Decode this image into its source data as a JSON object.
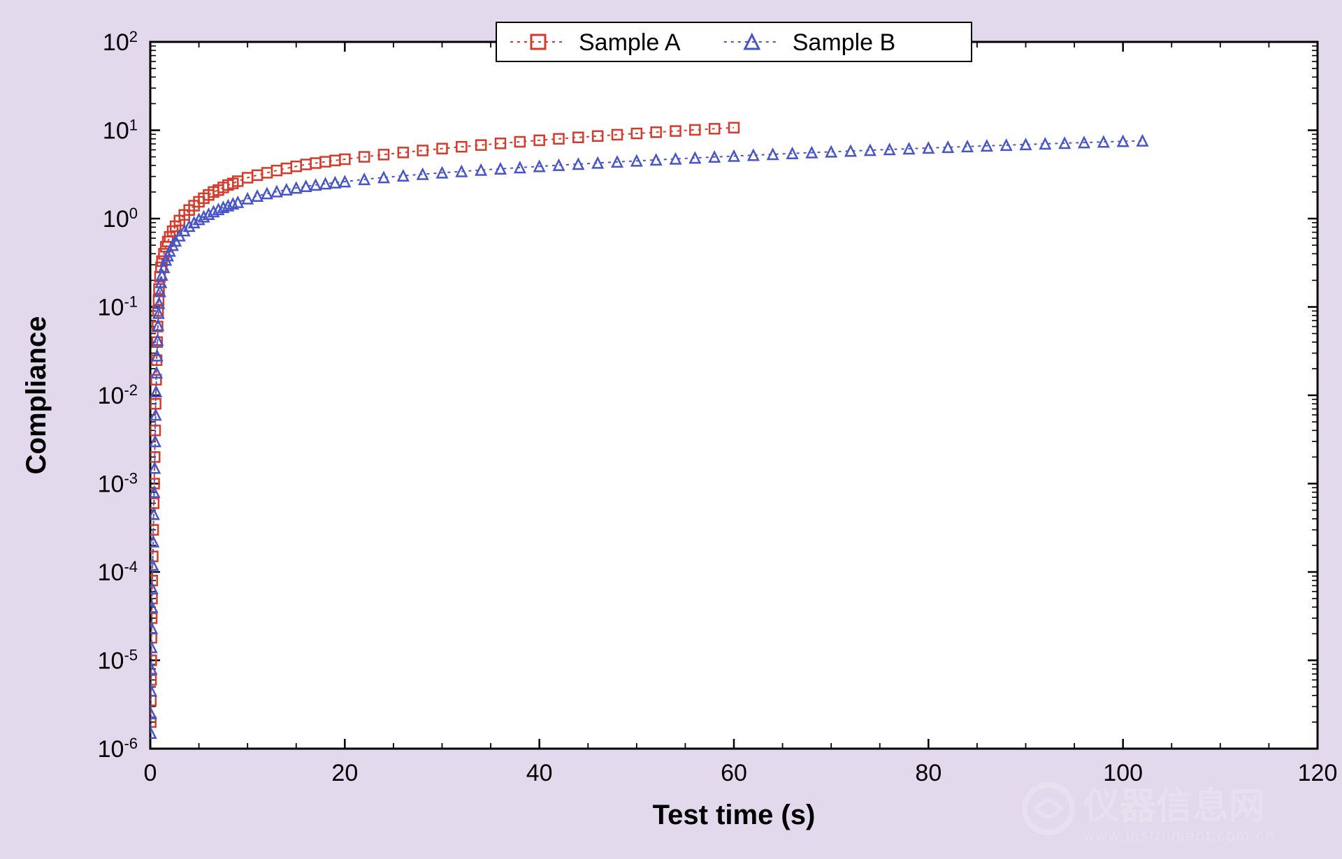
{
  "chart": {
    "type": "scatter-line",
    "background_color": "#e2d9ed",
    "plot_background_color": "#ffffff",
    "axis_color": "#000000",
    "grid": {
      "enabled": false
    },
    "tick_color": "#000000",
    "tick_fontsize": 34,
    "label_fontsize": 40,
    "label_fontweight": "bold",
    "xlabel": "Test time (s)",
    "ylabel": "Compliance",
    "x_axis": {
      "scale": "linear",
      "xlim": [
        0,
        120
      ],
      "ticks": [
        0,
        20,
        40,
        60,
        80,
        100,
        120
      ]
    },
    "y_axis": {
      "scale": "log",
      "ylim_exp": [
        -6,
        2
      ],
      "ticks_exp": [
        -6,
        -5,
        -4,
        -3,
        -2,
        -1,
        0,
        1,
        2
      ]
    },
    "legend": {
      "position": "top-center",
      "border_color": "#000000",
      "background_color": "#ffffff",
      "fontsize": 34,
      "items": [
        {
          "label": "Sample A",
          "marker": "square",
          "color": "#d63a2a",
          "line_color": "#d63a2a",
          "dash": "4,6"
        },
        {
          "label": "Sample B",
          "marker": "triangle",
          "color": "#4755c7",
          "line_color": "#4755c7",
          "dash": "4,6"
        }
      ]
    },
    "series": [
      {
        "name": "Sample A",
        "color": "#d63a2a",
        "marker": "square",
        "marker_size": 14,
        "marker_stroke_width": 2.5,
        "line_dash": "4,6",
        "line_width": 2,
        "data": [
          [
            0.05,
            2e-06
          ],
          [
            0.06,
            3.5e-06
          ],
          [
            0.08,
            6e-06
          ],
          [
            0.1,
            1e-05
          ],
          [
            0.12,
            1.8e-05
          ],
          [
            0.15,
            3e-05
          ],
          [
            0.18,
            5e-05
          ],
          [
            0.2,
            8e-05
          ],
          [
            0.25,
            0.00015
          ],
          [
            0.3,
            0.0003
          ],
          [
            0.35,
            0.0006
          ],
          [
            0.4,
            0.001
          ],
          [
            0.45,
            0.002
          ],
          [
            0.5,
            0.004
          ],
          [
            0.55,
            0.008
          ],
          [
            0.6,
            0.015
          ],
          [
            0.65,
            0.025
          ],
          [
            0.7,
            0.04
          ],
          [
            0.75,
            0.06
          ],
          [
            0.8,
            0.09
          ],
          [
            0.85,
            0.12
          ],
          [
            0.9,
            0.16
          ],
          [
            1.0,
            0.22
          ],
          [
            1.1,
            0.28
          ],
          [
            1.2,
            0.33
          ],
          [
            1.4,
            0.4
          ],
          [
            1.6,
            0.48
          ],
          [
            1.8,
            0.55
          ],
          [
            2.0,
            0.62
          ],
          [
            2.3,
            0.72
          ],
          [
            2.6,
            0.82
          ],
          [
            3.0,
            0.95
          ],
          [
            3.5,
            1.1
          ],
          [
            4.0,
            1.25
          ],
          [
            4.5,
            1.4
          ],
          [
            5.0,
            1.55
          ],
          [
            5.5,
            1.7
          ],
          [
            6.0,
            1.85
          ],
          [
            6.5,
            2.0
          ],
          [
            7.0,
            2.1
          ],
          [
            7.5,
            2.25
          ],
          [
            8.0,
            2.4
          ],
          [
            8.5,
            2.5
          ],
          [
            9.0,
            2.65
          ],
          [
            10,
            2.9
          ],
          [
            11,
            3.1
          ],
          [
            12,
            3.3
          ],
          [
            13,
            3.5
          ],
          [
            14,
            3.7
          ],
          [
            15,
            3.9
          ],
          [
            16,
            4.1
          ],
          [
            17,
            4.25
          ],
          [
            18,
            4.4
          ],
          [
            19,
            4.55
          ],
          [
            20,
            4.7
          ],
          [
            22,
            5.0
          ],
          [
            24,
            5.3
          ],
          [
            26,
            5.6
          ],
          [
            28,
            5.9
          ],
          [
            30,
            6.2
          ],
          [
            32,
            6.5
          ],
          [
            34,
            6.8
          ],
          [
            36,
            7.1
          ],
          [
            38,
            7.4
          ],
          [
            40,
            7.7
          ],
          [
            42,
            8.0
          ],
          [
            44,
            8.3
          ],
          [
            46,
            8.6
          ],
          [
            48,
            8.9
          ],
          [
            50,
            9.2
          ],
          [
            52,
            9.5
          ],
          [
            54,
            9.8
          ],
          [
            56,
            10.1
          ],
          [
            58,
            10.4
          ],
          [
            60,
            10.7
          ]
        ]
      },
      {
        "name": "Sample B",
        "color": "#4755c7",
        "marker": "triangle",
        "marker_size": 14,
        "marker_stroke_width": 2.5,
        "line_dash": "4,6",
        "line_width": 2,
        "data": [
          [
            0.05,
            1.5e-06
          ],
          [
            0.06,
            2.5e-06
          ],
          [
            0.08,
            4.5e-06
          ],
          [
            0.1,
            8e-06
          ],
          [
            0.12,
            1.4e-05
          ],
          [
            0.15,
            2.3e-05
          ],
          [
            0.18,
            4e-05
          ],
          [
            0.2,
            6.5e-05
          ],
          [
            0.25,
            0.00012
          ],
          [
            0.3,
            0.00022
          ],
          [
            0.35,
            0.00045
          ],
          [
            0.4,
            0.0008
          ],
          [
            0.45,
            0.0015
          ],
          [
            0.5,
            0.003
          ],
          [
            0.55,
            0.006
          ],
          [
            0.6,
            0.011
          ],
          [
            0.65,
            0.018
          ],
          [
            0.7,
            0.028
          ],
          [
            0.75,
            0.042
          ],
          [
            0.8,
            0.062
          ],
          [
            0.85,
            0.085
          ],
          [
            0.9,
            0.11
          ],
          [
            1.0,
            0.15
          ],
          [
            1.1,
            0.19
          ],
          [
            1.2,
            0.23
          ],
          [
            1.4,
            0.28
          ],
          [
            1.6,
            0.34
          ],
          [
            1.8,
            0.38
          ],
          [
            2.0,
            0.43
          ],
          [
            2.3,
            0.5
          ],
          [
            2.6,
            0.56
          ],
          [
            3.0,
            0.64
          ],
          [
            3.5,
            0.73
          ],
          [
            4.0,
            0.82
          ],
          [
            4.5,
            0.9
          ],
          [
            5.0,
            0.98
          ],
          [
            5.5,
            1.05
          ],
          [
            6.0,
            1.12
          ],
          [
            6.5,
            1.2
          ],
          [
            7.0,
            1.27
          ],
          [
            7.5,
            1.34
          ],
          [
            8.0,
            1.4
          ],
          [
            8.5,
            1.47
          ],
          [
            9.0,
            1.53
          ],
          [
            10,
            1.68
          ],
          [
            11,
            1.8
          ],
          [
            12,
            1.92
          ],
          [
            13,
            2.02
          ],
          [
            14,
            2.12
          ],
          [
            15,
            2.22
          ],
          [
            16,
            2.32
          ],
          [
            17,
            2.4
          ],
          [
            18,
            2.48
          ],
          [
            19,
            2.55
          ],
          [
            20,
            2.62
          ],
          [
            22,
            2.78
          ],
          [
            24,
            2.92
          ],
          [
            26,
            3.05
          ],
          [
            28,
            3.18
          ],
          [
            30,
            3.3
          ],
          [
            32,
            3.42
          ],
          [
            34,
            3.54
          ],
          [
            36,
            3.66
          ],
          [
            38,
            3.78
          ],
          [
            40,
            3.9
          ],
          [
            42,
            4.02
          ],
          [
            44,
            4.14
          ],
          [
            46,
            4.26
          ],
          [
            48,
            4.38
          ],
          [
            50,
            4.5
          ],
          [
            52,
            4.62
          ],
          [
            54,
            4.74
          ],
          [
            56,
            4.86
          ],
          [
            58,
            4.98
          ],
          [
            60,
            5.1
          ],
          [
            62,
            5.22
          ],
          [
            64,
            5.34
          ],
          [
            66,
            5.46
          ],
          [
            68,
            5.58
          ],
          [
            70,
            5.7
          ],
          [
            72,
            5.82
          ],
          [
            74,
            5.94
          ],
          [
            76,
            6.06
          ],
          [
            78,
            6.18
          ],
          [
            80,
            6.3
          ],
          [
            82,
            6.42
          ],
          [
            84,
            6.54
          ],
          [
            86,
            6.66
          ],
          [
            88,
            6.78
          ],
          [
            90,
            6.9
          ],
          [
            92,
            7.02
          ],
          [
            94,
            7.14
          ],
          [
            96,
            7.26
          ],
          [
            98,
            7.38
          ],
          [
            100,
            7.5
          ],
          [
            102,
            7.6
          ]
        ]
      }
    ],
    "watermark": {
      "text_main": "仪器信息网",
      "text_sub": "www.instrument.com.cn",
      "color": "#e9e3f1",
      "fontsize_main": 52,
      "fontsize_sub": 22
    }
  }
}
